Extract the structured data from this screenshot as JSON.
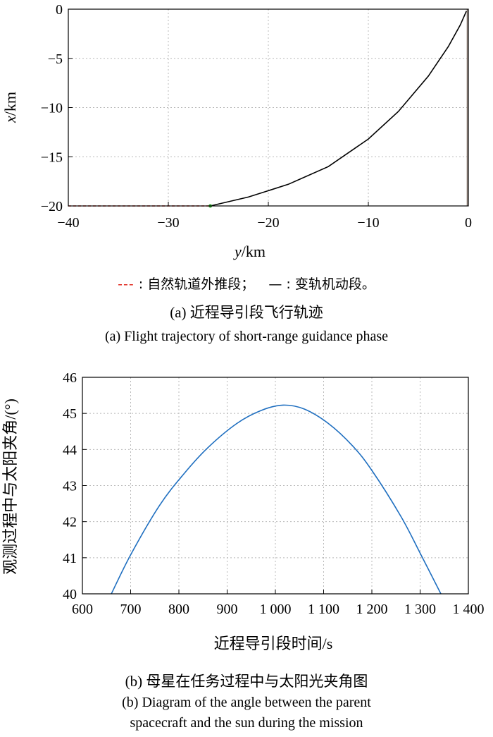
{
  "chart_data": [
    {
      "type": "line",
      "xlabel_var": "y",
      "xlabel_unit": "/km",
      "ylabel_var": "x",
      "ylabel_unit": "/km",
      "xlim": [
        -40,
        0
      ],
      "ylim": [
        -20,
        0
      ],
      "xticks": [
        "−40",
        "−30",
        "−20",
        "−10",
        "0"
      ],
      "yticks": [
        "0",
        "−5",
        "−10",
        "−15",
        "−20"
      ],
      "grid": true,
      "series": [
        {
          "name": "自然轨道外推段",
          "color": "#e0281e",
          "style": "dashed",
          "x": [
            -40,
            -25.8
          ],
          "y": [
            -20,
            -20
          ]
        },
        {
          "name": "变轨机动段",
          "color": "#000000",
          "style": "solid",
          "x": [
            -25.8,
            -22,
            -18,
            -14,
            -10,
            -7,
            -4,
            -2,
            -0.8,
            -0.2
          ],
          "y": [
            -20,
            -19.1,
            -17.8,
            -16.0,
            -13.2,
            -10.4,
            -6.8,
            -3.8,
            -1.6,
            -0.2
          ]
        }
      ],
      "legend_text": {
        "red_symbol": "---",
        "red_label": "自然轨道外推段；",
        "black_symbol": "—",
        "black_label": "变轨机动段。"
      },
      "caption_cn": "(a) 近程导引段飞行轨迹",
      "caption_en": "(a) Flight trajectory of short-range guidance phase"
    },
    {
      "type": "line",
      "xlabel": "近程导引段时间/s",
      "ylabel": "观测过程中与太阳夹角/(°)",
      "xlim": [
        600,
        1400
      ],
      "ylim": [
        40,
        46
      ],
      "xticks": [
        "600",
        "700",
        "800",
        "900",
        "1 000",
        "1 100",
        "1 200",
        "1 300",
        "1 400"
      ],
      "yticks": [
        "46",
        "45",
        "44",
        "43",
        "42",
        "41",
        "40"
      ],
      "grid": true,
      "series": [
        {
          "color": "#1f6fc0",
          "x": [
            660,
            700,
            760,
            810,
            860,
            920,
            970,
            1016,
            1060,
            1110,
            1160,
            1200,
            1260,
            1300,
            1343
          ],
          "y": [
            40.0,
            41.08,
            42.45,
            43.32,
            44.05,
            44.72,
            45.08,
            45.23,
            45.12,
            44.72,
            44.1,
            43.42,
            42.15,
            41.13,
            40.0
          ]
        }
      ],
      "caption_cn": "(b) 母星在任务过程中与太阳光夹角图",
      "caption_en_1": "(b) Diagram of the angle between the parent",
      "caption_en_2": "spacecraft and the sun during the mission"
    }
  ]
}
